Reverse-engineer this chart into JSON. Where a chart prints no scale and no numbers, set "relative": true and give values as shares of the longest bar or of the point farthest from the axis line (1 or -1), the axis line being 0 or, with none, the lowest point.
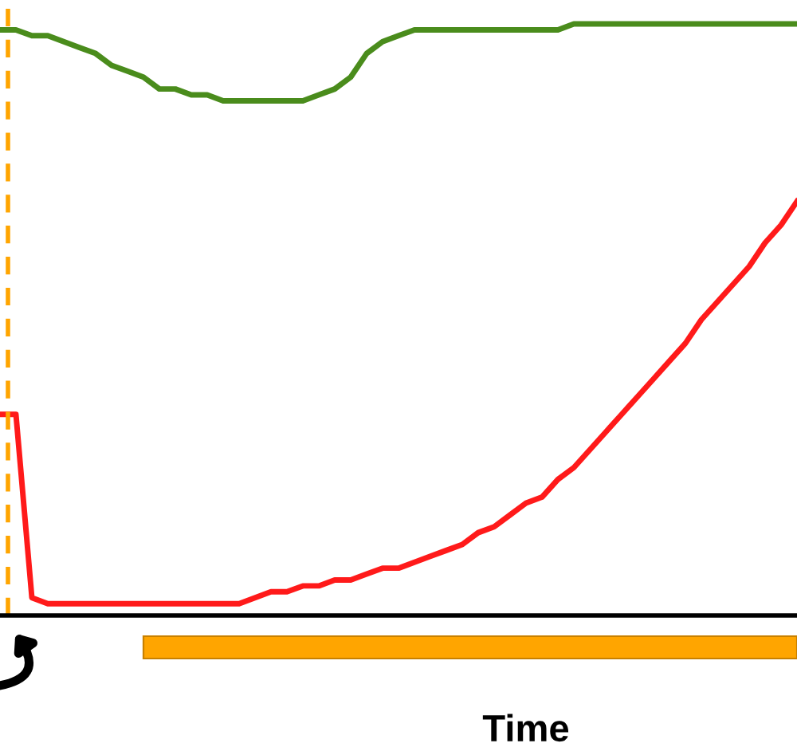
{
  "chart_data": {
    "type": "line",
    "xlabel": "Time",
    "relative": true,
    "categories": [
      null,
      null,
      null,
      null,
      null,
      null,
      null,
      null,
      null,
      null,
      null,
      null,
      null,
      null,
      null,
      null,
      null,
      null,
      null,
      null,
      null,
      null,
      null,
      null,
      null,
      null,
      null,
      null,
      null,
      null,
      null,
      null,
      null,
      null,
      null,
      null,
      null,
      null,
      null,
      null,
      null,
      null,
      null,
      null,
      null,
      null,
      null,
      null,
      null,
      null,
      null
    ],
    "series": [
      {
        "color": "#4a8c1c",
        "values": [
          0.99,
          0.99,
          0.98,
          0.98,
          0.97,
          0.96,
          0.95,
          0.93,
          0.92,
          0.91,
          0.89,
          0.89,
          0.88,
          0.88,
          0.87,
          0.87,
          0.87,
          0.87,
          0.87,
          0.87,
          0.88,
          0.89,
          0.91,
          0.95,
          0.97,
          0.98,
          0.99,
          0.99,
          0.99,
          0.99,
          0.99,
          0.99,
          0.99,
          0.99,
          0.99,
          0.99,
          1.0,
          1.0,
          1.0,
          1.0,
          1.0,
          1.0,
          1.0,
          1.0,
          1.0,
          1.0,
          1.0,
          1.0,
          1.0,
          1.0,
          1.0
        ]
      },
      {
        "color": "#ff1a1a",
        "values": [
          0.34,
          0.34,
          0.03,
          0.02,
          0.02,
          0.02,
          0.02,
          0.02,
          0.02,
          0.02,
          0.02,
          0.02,
          0.02,
          0.02,
          0.02,
          0.02,
          0.03,
          0.04,
          0.04,
          0.05,
          0.05,
          0.06,
          0.06,
          0.07,
          0.08,
          0.08,
          0.09,
          0.1,
          0.11,
          0.12,
          0.14,
          0.15,
          0.17,
          0.19,
          0.2,
          0.23,
          0.25,
          0.28,
          0.31,
          0.34,
          0.37,
          0.4,
          0.43,
          0.46,
          0.5,
          0.53,
          0.56,
          0.59,
          0.63,
          0.66,
          0.7
        ]
      }
    ],
    "line_style": "solid",
    "marker": "none",
    "grid": false,
    "legend": false
  }
}
